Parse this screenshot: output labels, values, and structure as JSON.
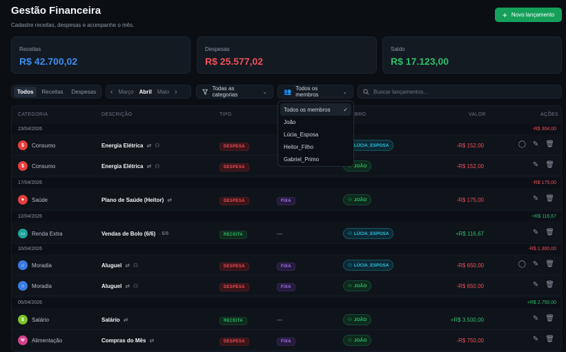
{
  "header": {
    "title": "Gestão Financeira",
    "subtitle": "Cadastre receitas, despesas e acompanhe o mês.",
    "new_button": "Novo lançamento"
  },
  "cards": [
    {
      "label": "Receitas",
      "value": "R$ 42.700,02",
      "color": "#3b8df0"
    },
    {
      "label": "Despesas",
      "value": "R$ 25.577,02",
      "color": "#f0505a"
    },
    {
      "label": "Saldo",
      "value": "R$ 17.123,00",
      "color": "#2fbf6a"
    }
  ],
  "type_filter": {
    "options": [
      "Todos",
      "Receitas",
      "Despesas"
    ],
    "selected": "Todos"
  },
  "month_nav": {
    "prev": "Março",
    "current": "Abril",
    "next": "Maio"
  },
  "category_filter": "Todas as categorias",
  "member_filter": "Todos os membros",
  "search": {
    "placeholder": "Buscar lançamentos..."
  },
  "table": {
    "headers": [
      "CATEGORIA",
      "DESCRIÇÃO",
      "TIPO",
      "MEMBRO",
      "VALOR",
      "AÇÕES"
    ]
  },
  "groups": [
    {
      "date": "23/04/2026",
      "total": "-R$ 304,00",
      "rows": [
        {
          "cat": "Consumo",
          "desc": "Energia Elétrica",
          "tipo": "DESPESA",
          "fixa": "FIXA",
          "membro": "LÚCIA_ESPOSA",
          "valor": "-R$ 152,00"
        },
        {
          "cat": "Consumo",
          "desc": "Energia Elétrica",
          "tipo": "DESPESA",
          "fixa": "FIXA",
          "membro": "JOÃO",
          "valor": "-R$ 152,00"
        }
      ]
    },
    {
      "date": "17/04/2026",
      "total": "-R$ 175,00",
      "rows": [
        {
          "cat": "Saúde",
          "desc": "Plano de Saúde (Heitor)",
          "tipo": "DESPESA",
          "fixa": "FIXA",
          "membro": "JOÃO",
          "valor": "-R$ 175,00"
        }
      ]
    },
    {
      "date": "12/04/2026",
      "total": "+R$ 116,67",
      "rows": [
        {
          "cat": "Renda Extra",
          "desc": "Vendas de Bolo (6/6)",
          "meta": "· 6/6",
          "tipo": "RECEITA",
          "dash": "—",
          "membro": "LÚCIA_ESPOSA",
          "valor": "+R$ 116,67"
        }
      ]
    },
    {
      "date": "10/04/2026",
      "total": "-R$ 1.300,00",
      "rows": [
        {
          "cat": "Moradia",
          "desc": "Aluguel",
          "tipo": "DESPESA",
          "fixa": "FIXA",
          "membro": "LÚCIA_ESPOSA",
          "valor": "-R$ 650,00"
        },
        {
          "cat": "Moradia",
          "desc": "Aluguel",
          "tipo": "DESPESA",
          "fixa": "FIXA",
          "membro": "JOÃO",
          "valor": "-R$ 650,00"
        }
      ]
    },
    {
      "date": "05/04/2026",
      "total": "+R$ 2.750,00",
      "rows": [
        {
          "cat": "Salário",
          "desc": "Salário",
          "tipo": "RECEITA",
          "dash": "—",
          "membro": "JOÃO",
          "valor": "+R$ 3.500,00"
        },
        {
          "cat": "Alimentação",
          "desc": "Compras do Mês",
          "tipo": "DESPESA",
          "fixa": "FIXA",
          "membro": "JOÃO",
          "valor": "-R$ 750,00"
        }
      ]
    }
  ],
  "dropdown": {
    "items": [
      "Todos os membros",
      "João",
      "Lúcia_Esposa",
      "Heitor_Filho",
      "Gabriel_Primo"
    ],
    "selected": "Todos os membros"
  }
}
